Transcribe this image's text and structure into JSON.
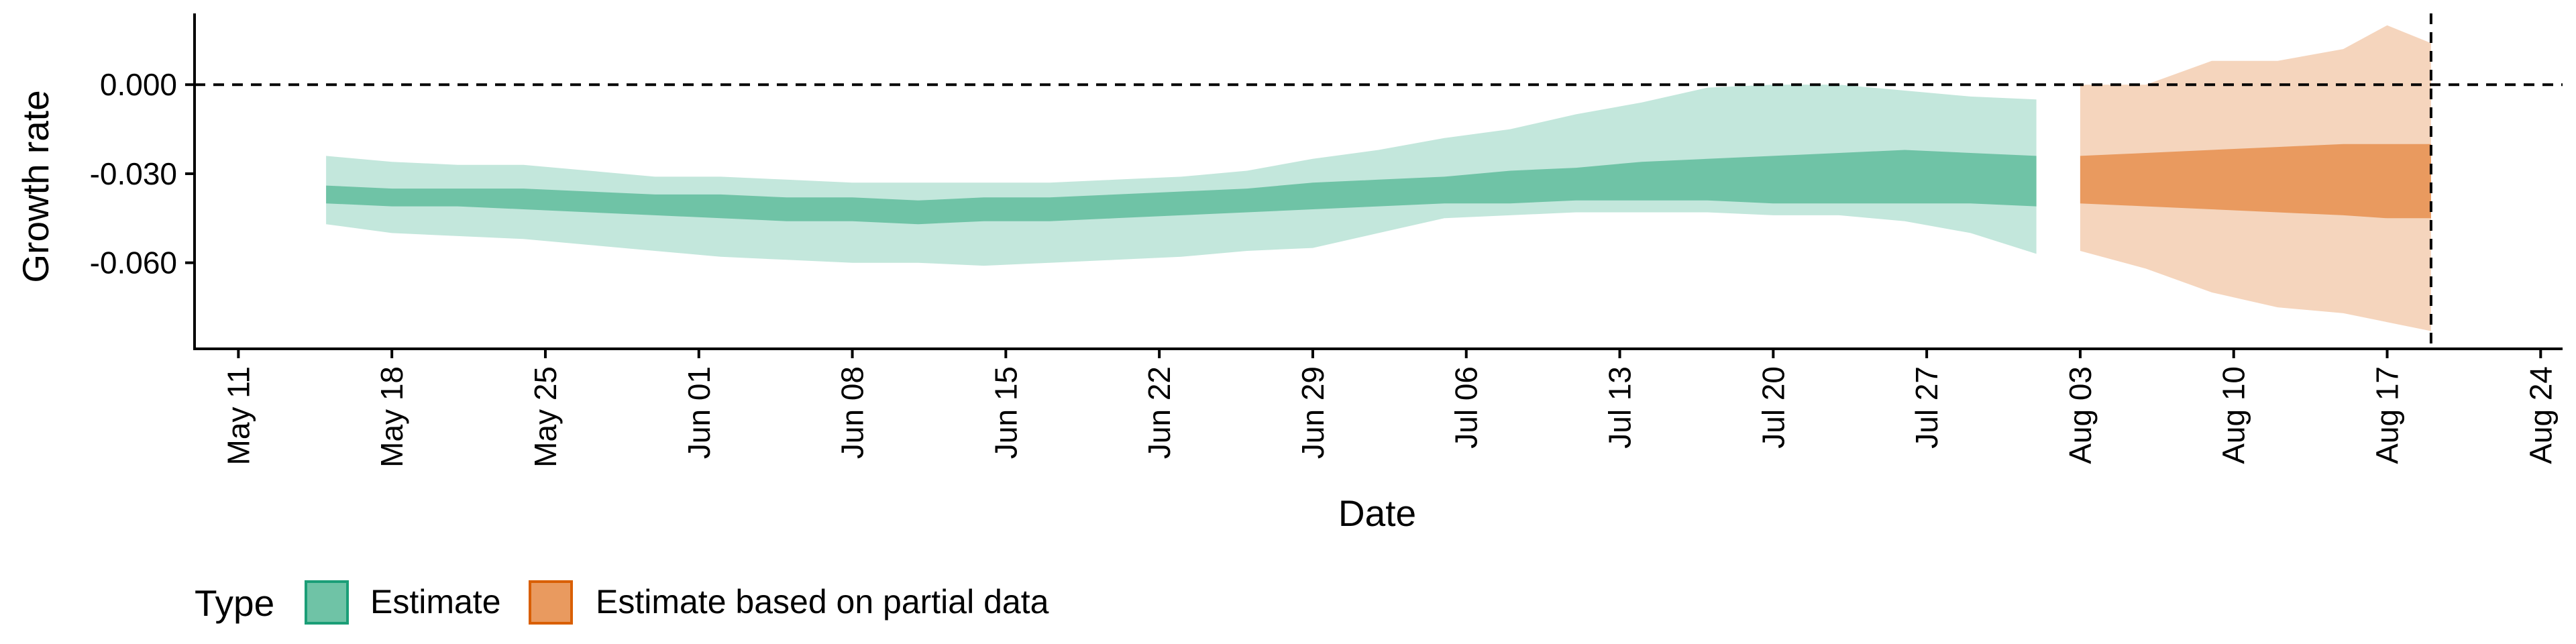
{
  "chart_data": {
    "type": "area",
    "title": "",
    "xlabel": "Date",
    "ylabel": "Growth rate",
    "x_type": "date",
    "xlim": [
      "2020-05-09",
      "2020-08-25"
    ],
    "ylim": [
      -0.089,
      0.024
    ],
    "x_ticks": [
      {
        "date": "2020-05-11",
        "label": "May 11"
      },
      {
        "date": "2020-05-18",
        "label": "May 18"
      },
      {
        "date": "2020-05-25",
        "label": "May 25"
      },
      {
        "date": "2020-06-01",
        "label": "Jun 01"
      },
      {
        "date": "2020-06-08",
        "label": "Jun 08"
      },
      {
        "date": "2020-06-15",
        "label": "Jun 15"
      },
      {
        "date": "2020-06-22",
        "label": "Jun 22"
      },
      {
        "date": "2020-06-29",
        "label": "Jun 29"
      },
      {
        "date": "2020-07-06",
        "label": "Jul 06"
      },
      {
        "date": "2020-07-13",
        "label": "Jul 13"
      },
      {
        "date": "2020-07-20",
        "label": "Jul 20"
      },
      {
        "date": "2020-07-27",
        "label": "Jul 27"
      },
      {
        "date": "2020-08-03",
        "label": "Aug 03"
      },
      {
        "date": "2020-08-10",
        "label": "Aug 10"
      },
      {
        "date": "2020-08-17",
        "label": "Aug 17"
      },
      {
        "date": "2020-08-24",
        "label": "Aug 24"
      }
    ],
    "y_ticks": [
      {
        "value": 0.0,
        "label": "0.000"
      },
      {
        "value": -0.03,
        "label": "-0.030"
      },
      {
        "value": -0.06,
        "label": "-0.060"
      }
    ],
    "reference_lines": {
      "hline": 0.0,
      "vline": "2020-08-19"
    },
    "grid": false,
    "legend": {
      "title": "Type",
      "position": "bottom-left",
      "entries": [
        {
          "label": "Estimate",
          "fill": "#6fc3a6",
          "border": "#1b9e77"
        },
        {
          "label": "Estimate based on partial data",
          "fill": "#e99a5f",
          "border": "#d95f02"
        }
      ]
    },
    "colors": {
      "estimate_inner": "#6fc3a6",
      "estimate_outer": "#c3e7dc",
      "partial_inner": "#e99a5f",
      "partial_outer": "#f5d5bd"
    },
    "series": [
      {
        "name": "Estimate",
        "x": [
          "2020-05-15",
          "2020-05-18",
          "2020-05-21",
          "2020-05-24",
          "2020-05-27",
          "2020-05-30",
          "2020-06-02",
          "2020-06-05",
          "2020-06-08",
          "2020-06-11",
          "2020-06-14",
          "2020-06-17",
          "2020-06-20",
          "2020-06-23",
          "2020-06-26",
          "2020-06-29",
          "2020-07-02",
          "2020-07-05",
          "2020-07-08",
          "2020-07-11",
          "2020-07-14",
          "2020-07-17",
          "2020-07-20",
          "2020-07-23",
          "2020-07-26",
          "2020-07-29",
          "2020-08-01"
        ],
        "outer_upper": [
          -0.024,
          -0.026,
          -0.027,
          -0.027,
          -0.029,
          -0.031,
          -0.031,
          -0.032,
          -0.033,
          -0.033,
          -0.033,
          -0.033,
          -0.032,
          -0.031,
          -0.029,
          -0.025,
          -0.022,
          -0.018,
          -0.015,
          -0.01,
          -0.006,
          -0.001,
          0.0,
          0.0,
          -0.002,
          -0.004,
          -0.005
        ],
        "outer_lower": [
          -0.047,
          -0.05,
          -0.051,
          -0.052,
          -0.054,
          -0.056,
          -0.058,
          -0.059,
          -0.06,
          -0.06,
          -0.061,
          -0.06,
          -0.059,
          -0.058,
          -0.056,
          -0.055,
          -0.05,
          -0.045,
          -0.044,
          -0.043,
          -0.043,
          -0.043,
          -0.044,
          -0.044,
          -0.046,
          -0.05,
          -0.057
        ],
        "inner_upper": [
          -0.034,
          -0.035,
          -0.035,
          -0.035,
          -0.036,
          -0.037,
          -0.037,
          -0.038,
          -0.038,
          -0.039,
          -0.038,
          -0.038,
          -0.037,
          -0.036,
          -0.035,
          -0.033,
          -0.032,
          -0.031,
          -0.029,
          -0.028,
          -0.026,
          -0.025,
          -0.024,
          -0.023,
          -0.022,
          -0.023,
          -0.024
        ],
        "inner_lower": [
          -0.04,
          -0.041,
          -0.041,
          -0.042,
          -0.043,
          -0.044,
          -0.045,
          -0.046,
          -0.046,
          -0.047,
          -0.046,
          -0.046,
          -0.045,
          -0.044,
          -0.043,
          -0.042,
          -0.041,
          -0.04,
          -0.04,
          -0.039,
          -0.039,
          -0.039,
          -0.04,
          -0.04,
          -0.04,
          -0.04,
          -0.041
        ]
      },
      {
        "name": "Estimate based on partial data",
        "x": [
          "2020-08-03",
          "2020-08-06",
          "2020-08-09",
          "2020-08-12",
          "2020-08-15",
          "2020-08-17",
          "2020-08-19"
        ],
        "outer_upper": [
          0.0,
          0.0,
          0.008,
          0.008,
          0.012,
          0.02,
          0.014
        ],
        "outer_lower": [
          -0.056,
          -0.062,
          -0.07,
          -0.075,
          -0.077,
          -0.08,
          -0.083
        ],
        "inner_upper": [
          -0.024,
          -0.023,
          -0.022,
          -0.021,
          -0.02,
          -0.02,
          -0.02
        ],
        "inner_lower": [
          -0.04,
          -0.041,
          -0.042,
          -0.043,
          -0.044,
          -0.045,
          -0.045
        ]
      }
    ]
  }
}
